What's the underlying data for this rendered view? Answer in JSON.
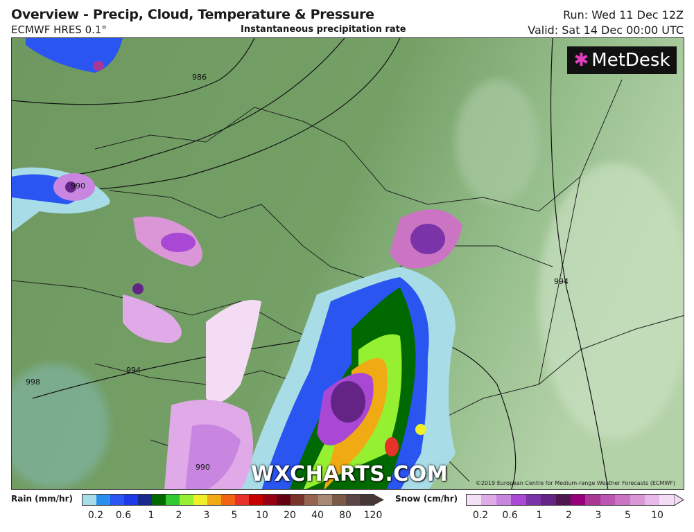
{
  "header": {
    "title": "Overview - Precip, Cloud, Temperature & Pressure",
    "model": "ECMWF HRES 0.1°",
    "subtitle": "Instantaneous precipitation rate",
    "run": "Run: Wed 11 Dec 12Z",
    "valid": "Valid: Sat 14 Dec 00:00 UTC"
  },
  "map": {
    "logo": "MetDesk",
    "watermark": "WXCHARTS.COM",
    "copyright": "©2019 European Centre for Medium-range Weather Forecasts (ECMWF)",
    "isobar_labels": [
      "986",
      "990",
      "994",
      "998",
      "994",
      "990"
    ]
  },
  "legend": {
    "rain": {
      "label": "Rain (mm/hr)",
      "ticks": [
        "0.2",
        "0.6",
        "1",
        "2",
        "3",
        "5",
        "10",
        "20",
        "40",
        "80",
        "120"
      ],
      "colors": [
        "#a8dce6",
        "#2a90ee",
        "#2a55f0",
        "#1e3ae6",
        "#1a2a8a",
        "#006a00",
        "#32c832",
        "#96f032",
        "#f0f028",
        "#f0aa14",
        "#f06414",
        "#e63228",
        "#c80000",
        "#960014",
        "#640014",
        "#78342a",
        "#966450",
        "#a88a74",
        "#785a46",
        "#5a4646",
        "#463636"
      ]
    },
    "snow": {
      "label": "Snow (cm/hr)",
      "ticks": [
        "0.2",
        "0.6",
        "1",
        "2",
        "3",
        "5",
        "10"
      ],
      "colors": [
        "#f4e0f4",
        "#e0aae8",
        "#c886e0",
        "#a848d4",
        "#7a34a8",
        "#642486",
        "#501650",
        "#960078",
        "#aa3696",
        "#bc56b4",
        "#cc74c4",
        "#da96d6",
        "#e8b8e8",
        "#f4dcf4"
      ]
    }
  }
}
